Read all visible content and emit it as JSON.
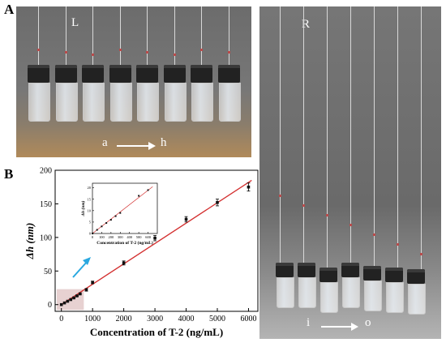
{
  "panels": {
    "a_letter": "A",
    "b_letter": "B",
    "left_photo_label": "L",
    "right_photo_label": "R",
    "left_range_start": "a",
    "left_range_end": "h",
    "right_range_start": "i",
    "right_range_end": "o"
  },
  "colors": {
    "fit_line": "#d32f2f",
    "points": "#111111",
    "inset_highlight": "#e3c9c9",
    "pointer_arrow": "#29a8e0"
  },
  "chart_data": [
    {
      "type": "scatter",
      "title": "",
      "xlabel": "Concentration of T-2 (ng/mL)",
      "ylabel": "Δh (nm)",
      "xlim": [
        -200,
        6300
      ],
      "ylim": [
        -10,
        200
      ],
      "xticks": [
        0,
        1000,
        2000,
        3000,
        4000,
        5000,
        6000
      ],
      "yticks": [
        0,
        50,
        100,
        150,
        200
      ],
      "grid": false,
      "legend": "none",
      "points": [
        {
          "x": 0,
          "y": 0,
          "err": 0
        },
        {
          "x": 100,
          "y": 2.5,
          "err": 0.3
        },
        {
          "x": 200,
          "y": 5,
          "err": 0.4
        },
        {
          "x": 300,
          "y": 7.5,
          "err": 0.5
        },
        {
          "x": 400,
          "y": 10,
          "err": 0.6
        },
        {
          "x": 500,
          "y": 13,
          "err": 0.8
        },
        {
          "x": 600,
          "y": 16,
          "err": 1
        },
        {
          "x": 800,
          "y": 22,
          "err": 2
        },
        {
          "x": 1000,
          "y": 33,
          "err": 2
        },
        {
          "x": 2000,
          "y": 62,
          "err": 3
        },
        {
          "x": 3000,
          "y": 99,
          "err": 4
        },
        {
          "x": 4000,
          "y": 127,
          "err": 4
        },
        {
          "x": 5000,
          "y": 152,
          "err": 5
        },
        {
          "x": 6000,
          "y": 175,
          "err": 6
        }
      ],
      "fit": {
        "x": [
          0,
          6100
        ],
        "y": [
          0,
          185
        ]
      }
    },
    {
      "type": "scatter",
      "title": "",
      "xlabel": "Concentration of T-2 (ng/mL)",
      "ylabel": "Δh (nm)",
      "xlim": [
        0,
        700
      ],
      "ylim": [
        0,
        22
      ],
      "xticks": [
        0,
        100,
        200,
        300,
        400,
        500,
        600
      ],
      "yticks": [
        0,
        5,
        10,
        15,
        20
      ],
      "grid": false,
      "legend": "none",
      "points": [
        {
          "x": 0,
          "y": 0
        },
        {
          "x": 50,
          "y": 1.6
        },
        {
          "x": 100,
          "y": 3.1
        },
        {
          "x": 150,
          "y": 4.6
        },
        {
          "x": 200,
          "y": 6
        },
        {
          "x": 250,
          "y": 7.6
        },
        {
          "x": 300,
          "y": 9
        },
        {
          "x": 500,
          "y": 16.5
        },
        {
          "x": 600,
          "y": 19
        }
      ],
      "fit": {
        "x": [
          0,
          650
        ],
        "y": [
          0,
          20.5
        ]
      }
    }
  ]
}
